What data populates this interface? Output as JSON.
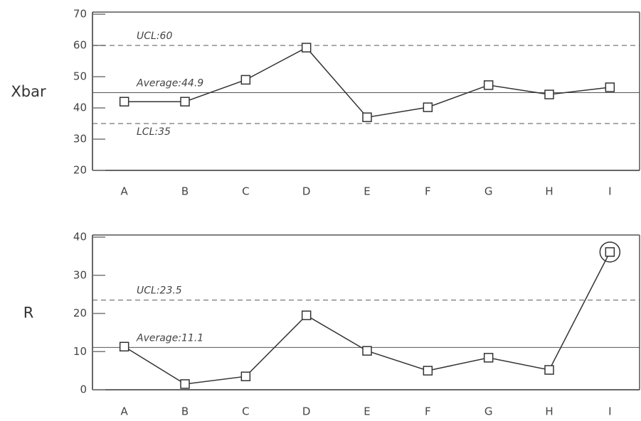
{
  "chart_data": [
    {
      "type": "line",
      "ylabel": "Xbar",
      "categories": [
        "A",
        "B",
        "C",
        "D",
        "E",
        "F",
        "G",
        "H",
        "I"
      ],
      "values": [
        42,
        42,
        49,
        59.3,
        37,
        40.2,
        47.3,
        44.3,
        46.6
      ],
      "color": "#333333",
      "ylim": [
        20,
        70
      ],
      "yticks": [
        20,
        30,
        40,
        50,
        60,
        70
      ],
      "annotations": [
        {
          "label": "UCL:60",
          "value": 60,
          "style": "dashed"
        },
        {
          "label": "Average:44.9",
          "value": 44.9,
          "style": "solid"
        },
        {
          "label": "LCL:35",
          "value": 35,
          "style": "dashed"
        }
      ]
    },
    {
      "type": "line",
      "ylabel": "R",
      "categories": [
        "A",
        "B",
        "C",
        "D",
        "E",
        "F",
        "G",
        "H",
        "I"
      ],
      "values": [
        11.3,
        1.5,
        3.5,
        19.5,
        10.2,
        5,
        8.4,
        5.2,
        36.1
      ],
      "color": "#333333",
      "ylim": [
        0,
        40
      ],
      "yticks": [
        0,
        10,
        20,
        30,
        40
      ],
      "annotations": [
        {
          "label": "UCL:23.5",
          "value": 23.5,
          "style": "dashed"
        },
        {
          "label": "Average:11.1",
          "value": 11.1,
          "style": "solid"
        }
      ]
    }
  ]
}
